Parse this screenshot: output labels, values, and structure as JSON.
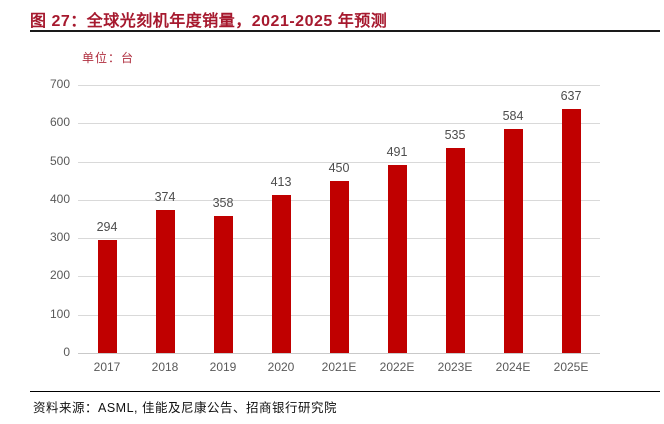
{
  "figure": {
    "title": "图 27：全球光刻机年度销量，2021-2025 年预测",
    "source": "资料来源：ASML, 佳能及尼康公告、招商银行研究院"
  },
  "chart_data": {
    "type": "bar",
    "title": "全球光刻机年度销量，2021-2025 年预测",
    "unit_label": "单位：台",
    "categories": [
      "2017",
      "2018",
      "2019",
      "2020",
      "2021E",
      "2022E",
      "2023E",
      "2024E",
      "2025E"
    ],
    "values": [
      294,
      374,
      358,
      413,
      450,
      491,
      535,
      584,
      637
    ],
    "ylabel": "",
    "xlabel": "",
    "ylim": [
      0,
      700
    ],
    "ytick_step": 100,
    "grid": true,
    "legend": "none",
    "bar_color": "#c00000",
    "value_label_color": "#4d4d4d",
    "axis_label_color": "#595959",
    "gridline_color": "#d9d9d9"
  }
}
